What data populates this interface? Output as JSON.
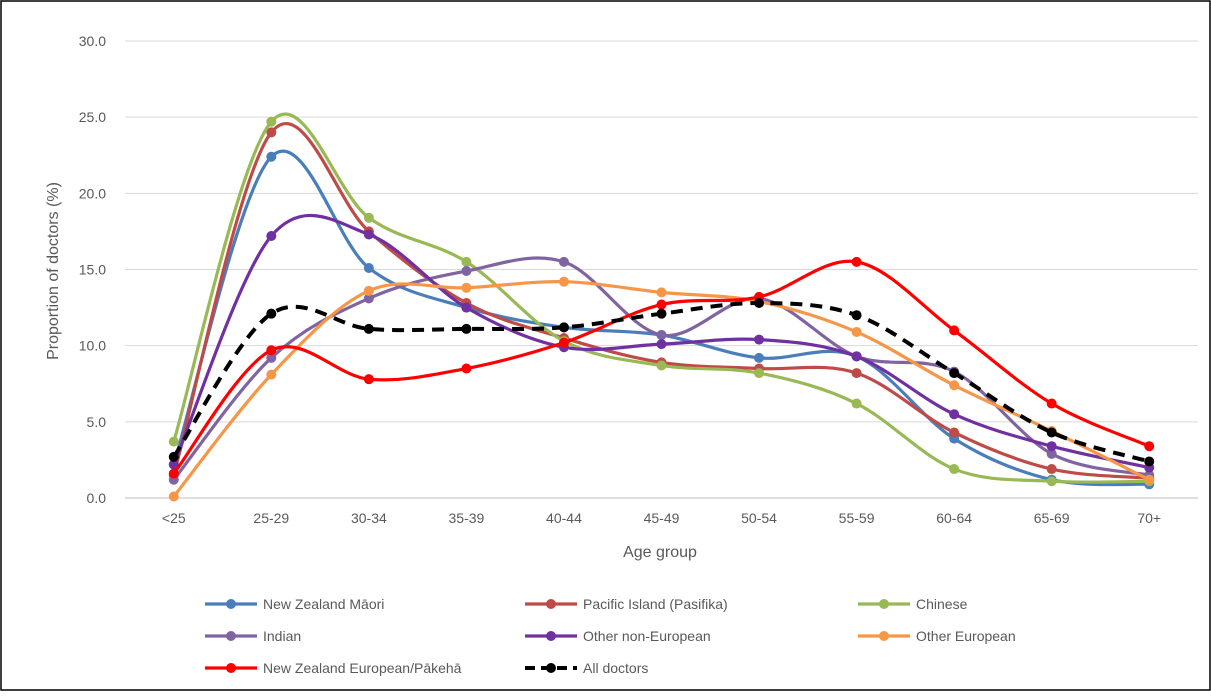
{
  "chart_data": {
    "type": "line",
    "title": "",
    "xlabel": "Age group",
    "ylabel": "Proportion of doctors (%)",
    "categories": [
      "<25",
      "25-29",
      "30-34",
      "35-39",
      "40-44",
      "45-49",
      "50-54",
      "55-59",
      "60-64",
      "65-69",
      "70+"
    ],
    "ylim": [
      0,
      30
    ],
    "yticks": [
      "0.0",
      "5.0",
      "10.0",
      "15.0",
      "20.0",
      "25.0",
      "30.0"
    ],
    "grid": true,
    "smooth": true,
    "legend_position": "bottom",
    "series": [
      {
        "name": "New Zealand Māori",
        "color": "#4A7EBB",
        "dashed": false,
        "values": [
          2.2,
          22.4,
          15.1,
          12.5,
          11.2,
          10.7,
          9.2,
          9.3,
          3.9,
          1.2,
          0.9
        ]
      },
      {
        "name": "Pacific Island (Pasifika)",
        "color": "#BE4B48",
        "dashed": false,
        "values": [
          1.5,
          24.0,
          17.5,
          12.8,
          10.5,
          8.9,
          8.5,
          8.2,
          4.3,
          1.9,
          1.3
        ]
      },
      {
        "name": "Chinese",
        "color": "#98B954",
        "dashed": false,
        "values": [
          3.7,
          24.7,
          18.4,
          15.5,
          10.3,
          8.7,
          8.2,
          6.2,
          1.9,
          1.1,
          1.1
        ]
      },
      {
        "name": "Indian",
        "color": "#8064A2",
        "dashed": false,
        "values": [
          1.2,
          9.2,
          13.1,
          14.9,
          15.5,
          10.7,
          13.1,
          9.3,
          8.3,
          2.9,
          1.5
        ]
      },
      {
        "name": "Other non-European",
        "color": "#7030A0",
        "dashed": false,
        "values": [
          2.2,
          17.2,
          17.3,
          12.5,
          9.9,
          10.1,
          10.4,
          9.3,
          5.5,
          3.4,
          2.0
        ]
      },
      {
        "name": "Other European",
        "color": "#F79646",
        "dashed": false,
        "values": [
          0.1,
          8.1,
          13.6,
          13.8,
          14.2,
          13.5,
          12.9,
          10.9,
          7.4,
          4.4,
          1.2
        ]
      },
      {
        "name": "New Zealand European/Pākehā",
        "color": "#FF0000",
        "dashed": false,
        "values": [
          1.6,
          9.7,
          7.8,
          8.5,
          10.2,
          12.7,
          13.2,
          15.5,
          11.0,
          6.2,
          3.4
        ]
      },
      {
        "name": "All doctors",
        "color": "#000000",
        "dashed": true,
        "values": [
          2.7,
          12.1,
          11.1,
          11.1,
          11.2,
          12.1,
          12.8,
          12.0,
          8.2,
          4.3,
          2.4
        ]
      }
    ]
  }
}
